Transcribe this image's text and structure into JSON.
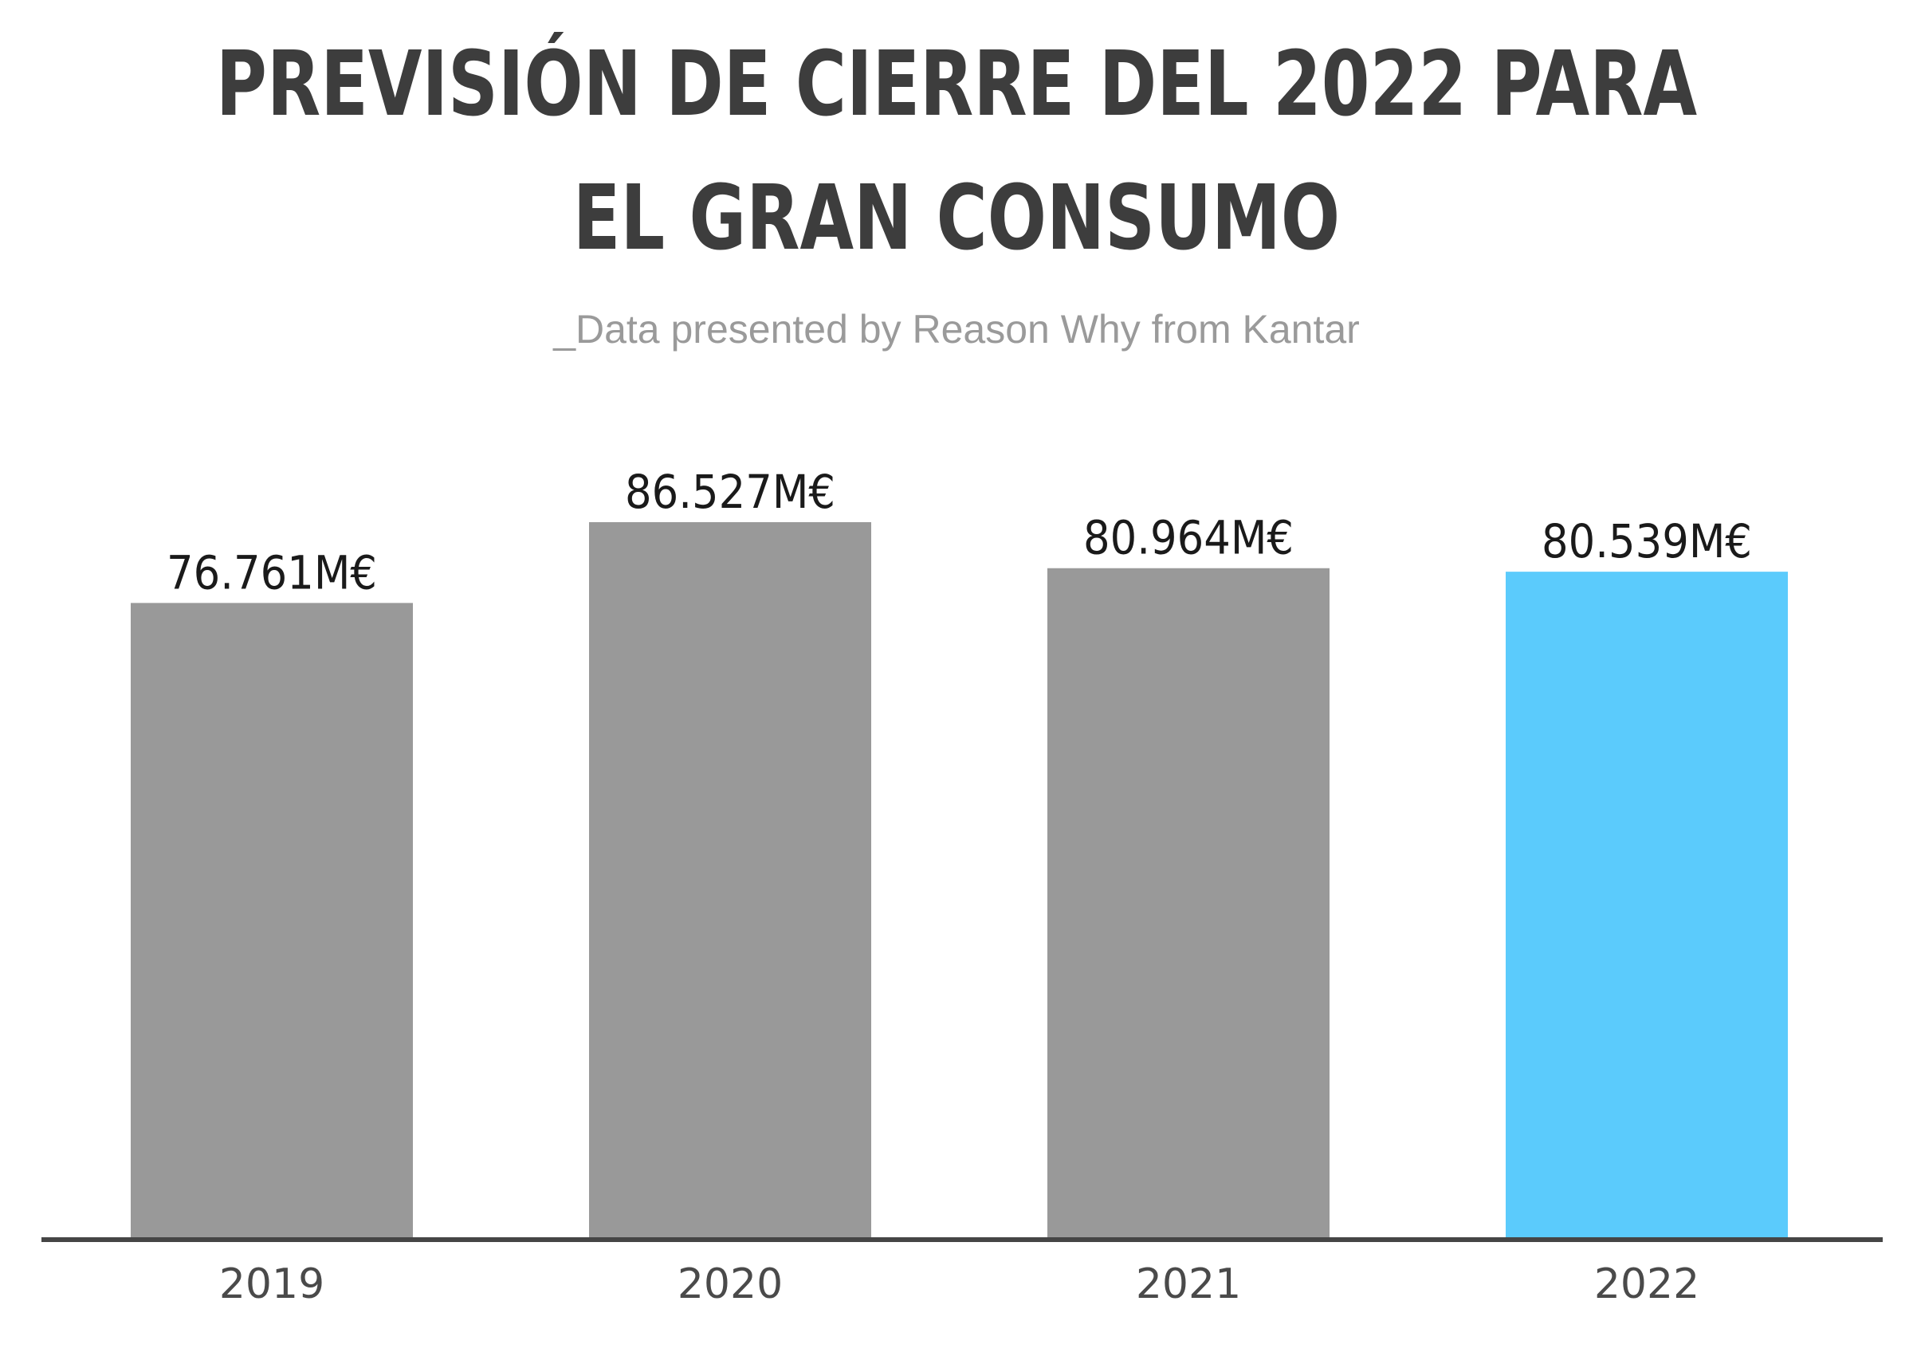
{
  "chart_data": {
    "type": "bar",
    "title": [
      "PREVISIÓN DE CIERRE DEL 2022 PARA",
      "EL GRAN CONSUMO"
    ],
    "subtitle": "_Data presented by Reason Why from Kantar",
    "categories": [
      "2019",
      "2020",
      "2021",
      "2022"
    ],
    "values": [
      76761,
      86527,
      80964,
      80539
    ],
    "value_labels": [
      "76.761M€",
      "86.527M€",
      "80.964M€",
      "80.539M€"
    ],
    "unit": "M€",
    "ylim": [
      0,
      86527
    ],
    "grid": false,
    "legend": "none",
    "colors": {
      "default_bar": "#999999",
      "highlight_bar": "#5bcbfc",
      "axis": "#454545",
      "title": "#3d3d3d",
      "subtitle": "#9a9a9a"
    },
    "highlight_index": 3
  }
}
